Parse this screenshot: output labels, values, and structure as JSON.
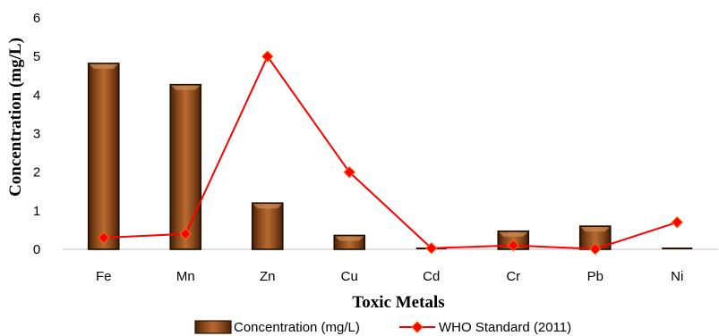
{
  "chart_data": {
    "type": "bar",
    "categories": [
      "Fe",
      "Mn",
      "Zn",
      "Cu",
      "Cd",
      "Cr",
      "Pb",
      "Ni"
    ],
    "series": [
      {
        "name": "Concentration (mg/L)",
        "type": "bar",
        "values": [
          4.82,
          4.27,
          1.2,
          0.36,
          0.0,
          0.47,
          0.6,
          0.03
        ],
        "color": "#7b3f14"
      },
      {
        "name": "WHO Standard (2011)",
        "type": "line",
        "values": [
          0.3,
          0.4,
          5.0,
          2.0,
          0.03,
          0.1,
          0.01,
          0.7
        ],
        "color": "#ff0000"
      }
    ],
    "xlabel": "Toxic Metals",
    "ylabel": "Concentration (mg/L)",
    "ylim": [
      0,
      6
    ],
    "yticks": [
      "0",
      "1",
      "2",
      "3",
      "4",
      "5",
      "6"
    ],
    "grid": false,
    "legend_position": "bottom"
  }
}
